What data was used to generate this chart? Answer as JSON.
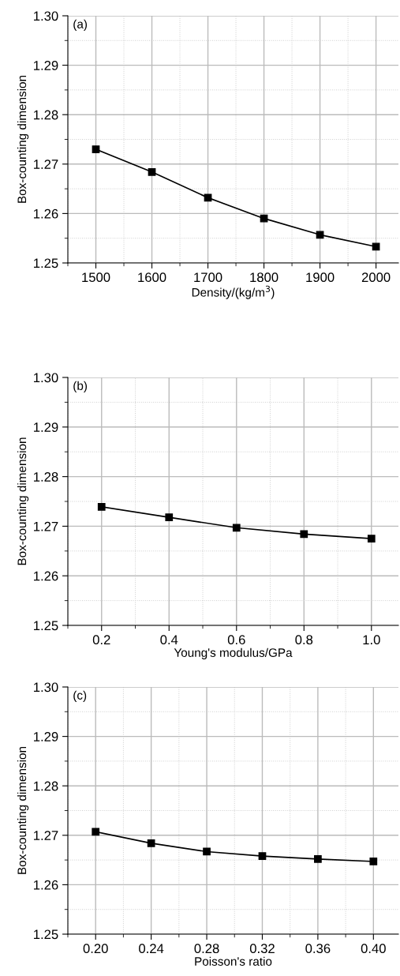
{
  "chart_data": [
    {
      "type": "line",
      "annotations": [
        "(a)"
      ],
      "xlabel": "Density/(kg/m$^{3}$)",
      "ylabel": "Box-counting dimension",
      "x": [
        1500,
        1600,
        1700,
        1800,
        1900,
        2000
      ],
      "series": [
        {
          "color": "#000000",
          "values": [
            1.273,
            1.2684,
            1.2632,
            1.259,
            1.2557,
            1.2533
          ]
        }
      ],
      "xlim": [
        1450,
        2040
      ],
      "xticks": [
        {
          "value": 1450,
          "label": null
        },
        1500,
        {
          "value": 1550,
          "label": null
        },
        1600,
        {
          "value": 1650,
          "label": null
        },
        1700,
        {
          "value": 1750,
          "label": null
        },
        1800,
        {
          "value": 1850,
          "label": null
        },
        1900,
        {
          "value": 1950,
          "label": null
        },
        2000
      ],
      "ylim": [
        1.25,
        1.3
      ],
      "yticks": [
        1.25,
        {
          "value": 1.255,
          "label": null
        },
        1.26,
        {
          "value": 1.265,
          "label": null
        },
        1.27,
        {
          "value": 1.275,
          "label": null
        },
        1.28,
        {
          "value": 1.285,
          "label": null
        },
        1.29,
        {
          "value": 1.295,
          "label": null
        },
        {
          "value": 1.3,
          "label": "1.30"
        }
      ],
      "grid": true,
      "marker": "square",
      "line_style": "solid"
    },
    {
      "type": "line",
      "annotations": [
        "(b)"
      ],
      "xlabel": "Young's modulus/GPa",
      "ylabel": "Box-counting dimension",
      "x": [
        0.2,
        0.4,
        0.6,
        0.8,
        1.0
      ],
      "series": [
        {
          "color": "#000000",
          "values": [
            1.2739,
            1.2718,
            1.2697,
            1.2684,
            1.2675
          ]
        }
      ],
      "xlim": [
        0.1,
        1.08
      ],
      "xticks": [
        {
          "value": 0.1,
          "label": null
        },
        0.2,
        {
          "value": 0.3,
          "label": null
        },
        0.4,
        {
          "value": 0.5,
          "label": null
        },
        0.6,
        {
          "value": 0.7,
          "label": null
        },
        0.8,
        {
          "value": 0.9,
          "label": null
        },
        {
          "value": 1.0,
          "label": "1.0"
        }
      ],
      "ylim": [
        1.25,
        1.3
      ],
      "yticks": [
        1.25,
        {
          "value": 1.255,
          "label": null
        },
        1.26,
        {
          "value": 1.265,
          "label": null
        },
        1.27,
        {
          "value": 1.275,
          "label": null
        },
        1.28,
        {
          "value": 1.285,
          "label": null
        },
        1.29,
        {
          "value": 1.295,
          "label": null
        },
        {
          "value": 1.3,
          "label": "1.30"
        }
      ],
      "grid": true,
      "marker": "square",
      "line_style": "solid"
    },
    {
      "type": "line",
      "annotations": [
        "(c)"
      ],
      "xlabel": "Poisson's ratio",
      "ylabel": "Box-counting dimension",
      "x": [
        0.2,
        0.24,
        0.28,
        0.32,
        0.36,
        0.4
      ],
      "series": [
        {
          "color": "#000000",
          "values": [
            1.2707,
            1.2684,
            1.2667,
            1.2658,
            1.2652,
            1.2647
          ]
        }
      ],
      "xlim": [
        0.18,
        0.418
      ],
      "xticks": [
        {
          "value": 0.18,
          "label": null
        },
        {
          "value": 0.2,
          "label": "0.20"
        },
        {
          "value": 0.22,
          "label": null
        },
        0.24,
        {
          "value": 0.26,
          "label": null
        },
        0.28,
        {
          "value": 0.3,
          "label": null
        },
        0.32,
        {
          "value": 0.34,
          "label": null
        },
        0.36,
        {
          "value": 0.38,
          "label": null
        },
        {
          "value": 0.4,
          "label": "0.40"
        }
      ],
      "ylim": [
        1.25,
        1.3
      ],
      "yticks": [
        1.25,
        {
          "value": 1.255,
          "label": null
        },
        1.26,
        {
          "value": 1.265,
          "label": null
        },
        1.27,
        {
          "value": 1.275,
          "label": null
        },
        1.28,
        {
          "value": 1.285,
          "label": null
        },
        1.29,
        {
          "value": 1.295,
          "label": null
        },
        {
          "value": 1.3,
          "label": "1.30"
        }
      ],
      "grid": true,
      "marker": "square",
      "line_style": "solid"
    }
  ]
}
